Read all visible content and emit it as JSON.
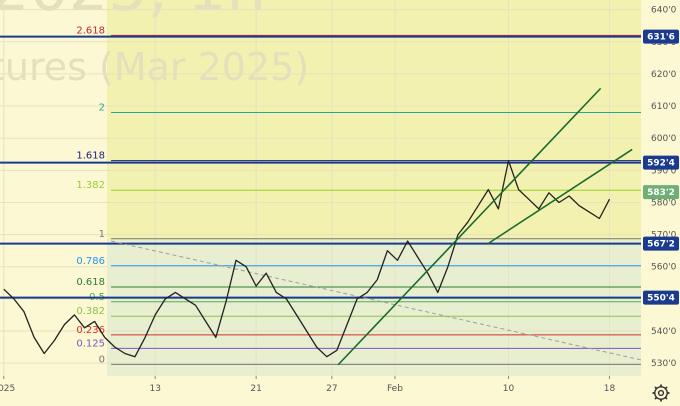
{
  "watermark": {
    "line1": "2025, 1h",
    "line2": "tures (Mar 2025)"
  },
  "chart_data": {
    "type": "line",
    "y_axis_ticks": [
      {
        "v": 640,
        "label": "640'0"
      },
      {
        "v": 630,
        "label": "630'0"
      },
      {
        "v": 620,
        "label": "620'0"
      },
      {
        "v": 610,
        "label": "610'0"
      },
      {
        "v": 600,
        "label": "600'0"
      },
      {
        "v": 590,
        "label": "590'0"
      },
      {
        "v": 580,
        "label": "580'0"
      },
      {
        "v": 570,
        "label": "570'0"
      },
      {
        "v": 560,
        "label": "560'0"
      },
      {
        "v": 550,
        "label": "550'0"
      },
      {
        "v": 540,
        "label": "540'0"
      },
      {
        "v": 530,
        "label": "530'0"
      }
    ],
    "x_axis_ticks": [
      {
        "d": 0,
        "label": "2025"
      },
      {
        "d": 12,
        "label": "13"
      },
      {
        "d": 20,
        "label": "21"
      },
      {
        "d": 26,
        "label": "27"
      },
      {
        "d": 31,
        "label": "Feb"
      },
      {
        "d": 40,
        "label": "10"
      },
      {
        "d": 48,
        "label": "18"
      }
    ],
    "ylim": [
      526,
      643
    ],
    "xlim": [
      -0.3,
      50.5
    ],
    "fib_levels": [
      {
        "ratio": "2.618",
        "v": 632.0,
        "color": "#c62828"
      },
      {
        "ratio": "2",
        "v": 608.0,
        "color": "#26a69a"
      },
      {
        "ratio": "1.618",
        "v": 593.0,
        "color": "#1a237e"
      },
      {
        "ratio": "1.382",
        "v": 583.8,
        "color": "#9acd32"
      },
      {
        "ratio": "1",
        "v": 568.7,
        "color": "#777777"
      },
      {
        "ratio": "0.786",
        "v": 560.3,
        "color": "#2196f3"
      },
      {
        "ratio": "0.618",
        "v": 553.7,
        "color": "#2e7d32"
      },
      {
        "ratio": "0.5",
        "v": 549.1,
        "color": "#4caf50"
      },
      {
        "ratio": "0.382",
        "v": 544.6,
        "color": "#8bc34a"
      },
      {
        "ratio": "0.236",
        "v": 538.8,
        "color": "#d32f2f"
      },
      {
        "ratio": "0.125",
        "v": 534.6,
        "color": "#7e57c2"
      },
      {
        "ratio": "0",
        "v": 529.6,
        "color": "#777777"
      }
    ],
    "horizontal_lines": [
      631.6,
      592.4,
      567.2,
      550.4
    ],
    "price_tags": [
      {
        "label": "631'6",
        "v": 631.6,
        "color": "#1a3a8f"
      },
      {
        "label": "592'4",
        "v": 592.4,
        "color": "#1a3a8f"
      },
      {
        "label": "583'2",
        "v": 583.2,
        "color": "#6fae76"
      },
      {
        "label": "567'2",
        "v": 567.2,
        "color": "#1a3a8f"
      },
      {
        "label": "550'4",
        "v": 550.4,
        "color": "#1a3a8f"
      }
    ],
    "trend_channel": [
      {
        "d1": 26.5,
        "v1": 529.5,
        "d2": 47.3,
        "v2": 615.5
      },
      {
        "d1": 38.3,
        "v1": 567.0,
        "d2": 49.8,
        "v2": 596.5
      }
    ],
    "diagonal_dashed": {
      "d1": 8.5,
      "v1": 568.0,
      "d2": 50.5,
      "v2": 531.0
    },
    "price_series": {
      "d": [
        0,
        0.8,
        1.6,
        2.4,
        3.2,
        4,
        4.8,
        5.6,
        6.4,
        7.2,
        8,
        8.8,
        9.6,
        10.4,
        11.2,
        12,
        12.8,
        13.6,
        14.4,
        15.2,
        16,
        16.8,
        17.6,
        18.4,
        19.2,
        20,
        20.8,
        21.6,
        22.4,
        23.2,
        24,
        24.8,
        25.6,
        26.4,
        27.2,
        28,
        28.8,
        29.6,
        30.4,
        31.2,
        32,
        32.8,
        33.6,
        34.4,
        35.2,
        36,
        36.8,
        37.6,
        38.4,
        39.2,
        40,
        40.8,
        41.6,
        42.4,
        43.2,
        44,
        44.8,
        45.6,
        46.4,
        47.2,
        48
      ],
      "v": [
        553,
        550,
        546,
        538,
        533,
        537,
        542,
        545,
        541,
        543,
        538,
        535,
        533,
        532,
        538,
        545,
        550,
        552,
        550,
        548,
        543,
        538,
        549,
        562,
        560,
        554,
        558,
        552,
        550,
        545,
        540,
        535,
        532,
        534,
        542,
        550,
        552,
        556,
        565,
        562,
        568,
        563,
        558,
        552,
        560,
        570,
        574,
        579,
        584,
        578,
        593,
        584,
        581,
        578,
        583,
        580,
        582,
        579,
        577,
        575,
        581
      ]
    }
  }
}
